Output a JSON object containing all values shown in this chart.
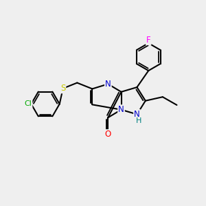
{
  "bg_color": "#efefef",
  "bond_color": "#000000",
  "bond_width": 1.5,
  "atom_colors": {
    "N": "#0000cc",
    "O": "#ff0000",
    "S": "#cccc00",
    "Cl": "#00aa00",
    "F": "#ff00ff",
    "H": "#008080",
    "C": "#000000"
  },
  "font_size": 8.5,
  "fig_size": [
    3.0,
    3.0
  ],
  "dpi": 100
}
